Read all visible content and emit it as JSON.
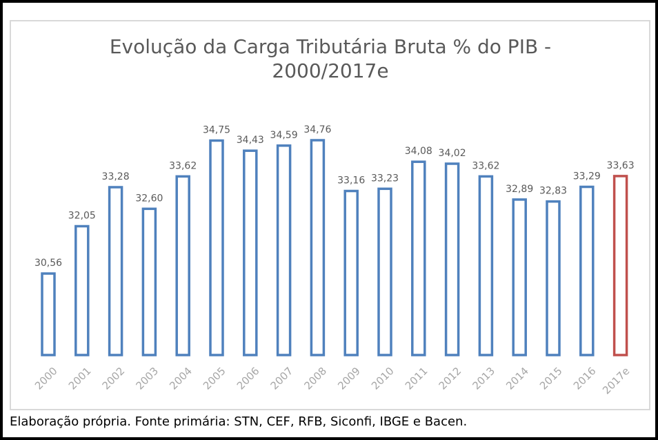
{
  "source_note": "Elaboração própria. Fonte primária: STN, CEF, RFB, Siconfi, IBGE e Bacen.",
  "chart_data": {
    "type": "bar",
    "title": "Evolução da Carga Tributária Bruta % do PIB - 2000/2017e",
    "title_lines": [
      "Evolução da Carga Tributária Bruta % do PIB -",
      "2000/2017e"
    ],
    "categories": [
      "2000",
      "2001",
      "2002",
      "2003",
      "2004",
      "2005",
      "2006",
      "2007",
      "2008",
      "2009",
      "2010",
      "2011",
      "2012",
      "2013",
      "2014",
      "2015",
      "2016",
      "2017e"
    ],
    "values": [
      30.56,
      32.05,
      33.28,
      32.6,
      33.62,
      34.75,
      34.43,
      34.59,
      34.76,
      33.16,
      33.23,
      34.08,
      34.02,
      33.62,
      32.89,
      32.83,
      33.29,
      33.63
    ],
    "data_labels": [
      "30,56",
      "32,05",
      "33,28",
      "32,60",
      "33,62",
      "34,75",
      "34,43",
      "34,59",
      "34,76",
      "33,16",
      "33,23",
      "34,08",
      "34,02",
      "33,62",
      "32,89",
      "32,83",
      "33,29",
      "33,63"
    ],
    "highlight_categories": [
      "2017e"
    ],
    "colors": {
      "bar": "#4f81bd",
      "highlight": "#c0504d",
      "bar_fill": "#ffffff"
    },
    "xlabel": "",
    "ylabel": "",
    "ylim": [
      28,
      35
    ],
    "grid": false,
    "legend": "none"
  }
}
